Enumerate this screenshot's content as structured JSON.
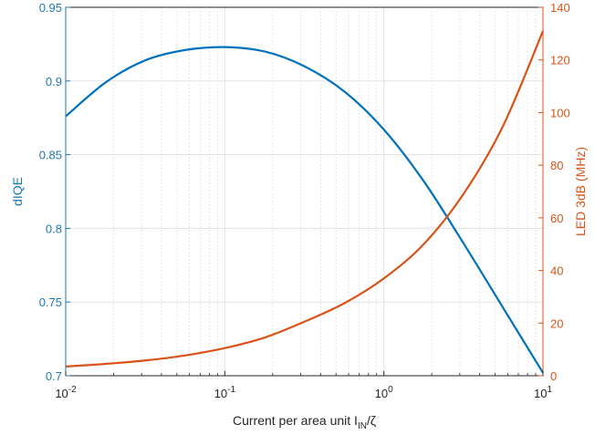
{
  "chart_data": {
    "type": "line",
    "xscale": "log",
    "xlim": [
      0.01,
      10
    ],
    "x_ticks": [
      0.01,
      0.1,
      1,
      10
    ],
    "x_tick_labels": [
      {
        "base": "10",
        "exp": "-2"
      },
      {
        "base": "10",
        "exp": "-1"
      },
      {
        "base": "10",
        "exp": "0"
      },
      {
        "base": "10",
        "exp": "1"
      }
    ],
    "xlabel": {
      "main": "Current per area unit I",
      "sub": "IN",
      "tail": "/ζ"
    },
    "grid": true,
    "left_axis": {
      "label": "dIQE",
      "color": "#1f77b4",
      "ylim": [
        0.7,
        0.95
      ],
      "ticks": [
        0.7,
        0.75,
        0.8,
        0.85,
        0.9,
        0.95
      ],
      "tick_labels": [
        "0.7",
        "0.75",
        "0.8",
        "0.85",
        "0.9",
        "0.95"
      ]
    },
    "right_axis": {
      "label": "LED 3dB (MHz)",
      "color": "#d95319",
      "ylim": [
        0,
        140
      ],
      "ticks": [
        0,
        20,
        40,
        60,
        80,
        100,
        120,
        140
      ],
      "tick_labels": [
        "0",
        "20",
        "40",
        "60",
        "80",
        "100",
        "120",
        "140"
      ]
    },
    "series": [
      {
        "axis": "left",
        "color": "#0072bd",
        "x": [
          0.01,
          0.0178,
          0.0316,
          0.0562,
          0.1,
          0.178,
          0.316,
          0.562,
          1,
          1.78,
          3.16,
          5.62,
          10
        ],
        "y": [
          0.876,
          0.899,
          0.914,
          0.921,
          0.923,
          0.92,
          0.91,
          0.893,
          0.867,
          0.832,
          0.79,
          0.746,
          0.702
        ]
      },
      {
        "axis": "right",
        "color": "#d95319",
        "x": [
          0.01,
          0.0178,
          0.0316,
          0.0562,
          0.1,
          0.178,
          0.316,
          0.562,
          1,
          1.78,
          3.16,
          5.62,
          10
        ],
        "y": [
          3.5,
          4.5,
          5.8,
          7.7,
          10.5,
          14.5,
          20.5,
          27.5,
          37,
          50,
          69,
          95,
          131
        ]
      }
    ]
  }
}
